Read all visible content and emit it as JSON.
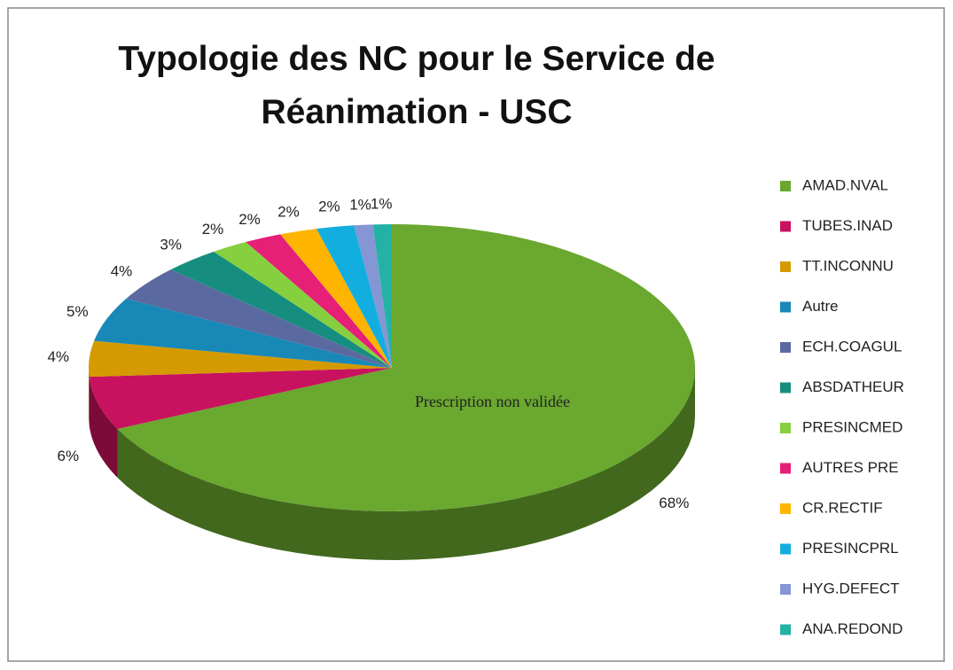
{
  "chart_data": {
    "type": "pie3d",
    "title": [
      "Typologie des NC pour le Service de",
      "Réanimation - USC"
    ],
    "annotation": "Prescription non validée",
    "categories": [
      "AMAD.NVAL",
      "TUBES.INAD",
      "TT.INCONNU",
      "Autre",
      "ECH.COAGUL",
      "ABSDATHEUR",
      "PRESINCMED",
      "AUTRES PRE",
      "CR.RECTIF",
      "PRESINCPRL",
      "HYG.DEFECT",
      "ANA.REDOND"
    ],
    "values": [
      68,
      6,
      4,
      5,
      4,
      3,
      2,
      2,
      2,
      2,
      1,
      1
    ],
    "value_labels": [
      "68%",
      "6%",
      "4%",
      "5%",
      "4%",
      "3%",
      "2%",
      "2%",
      "2%",
      "2%",
      "1%",
      "1%"
    ],
    "colors": [
      "#6aa82f",
      "#c8125f",
      "#d49a00",
      "#1888b6",
      "#5a6aa0",
      "#158e80",
      "#86cf3f",
      "#e61f77",
      "#ffb400",
      "#12aee0",
      "#8596d4",
      "#25b2a6"
    ],
    "legend": "right"
  }
}
